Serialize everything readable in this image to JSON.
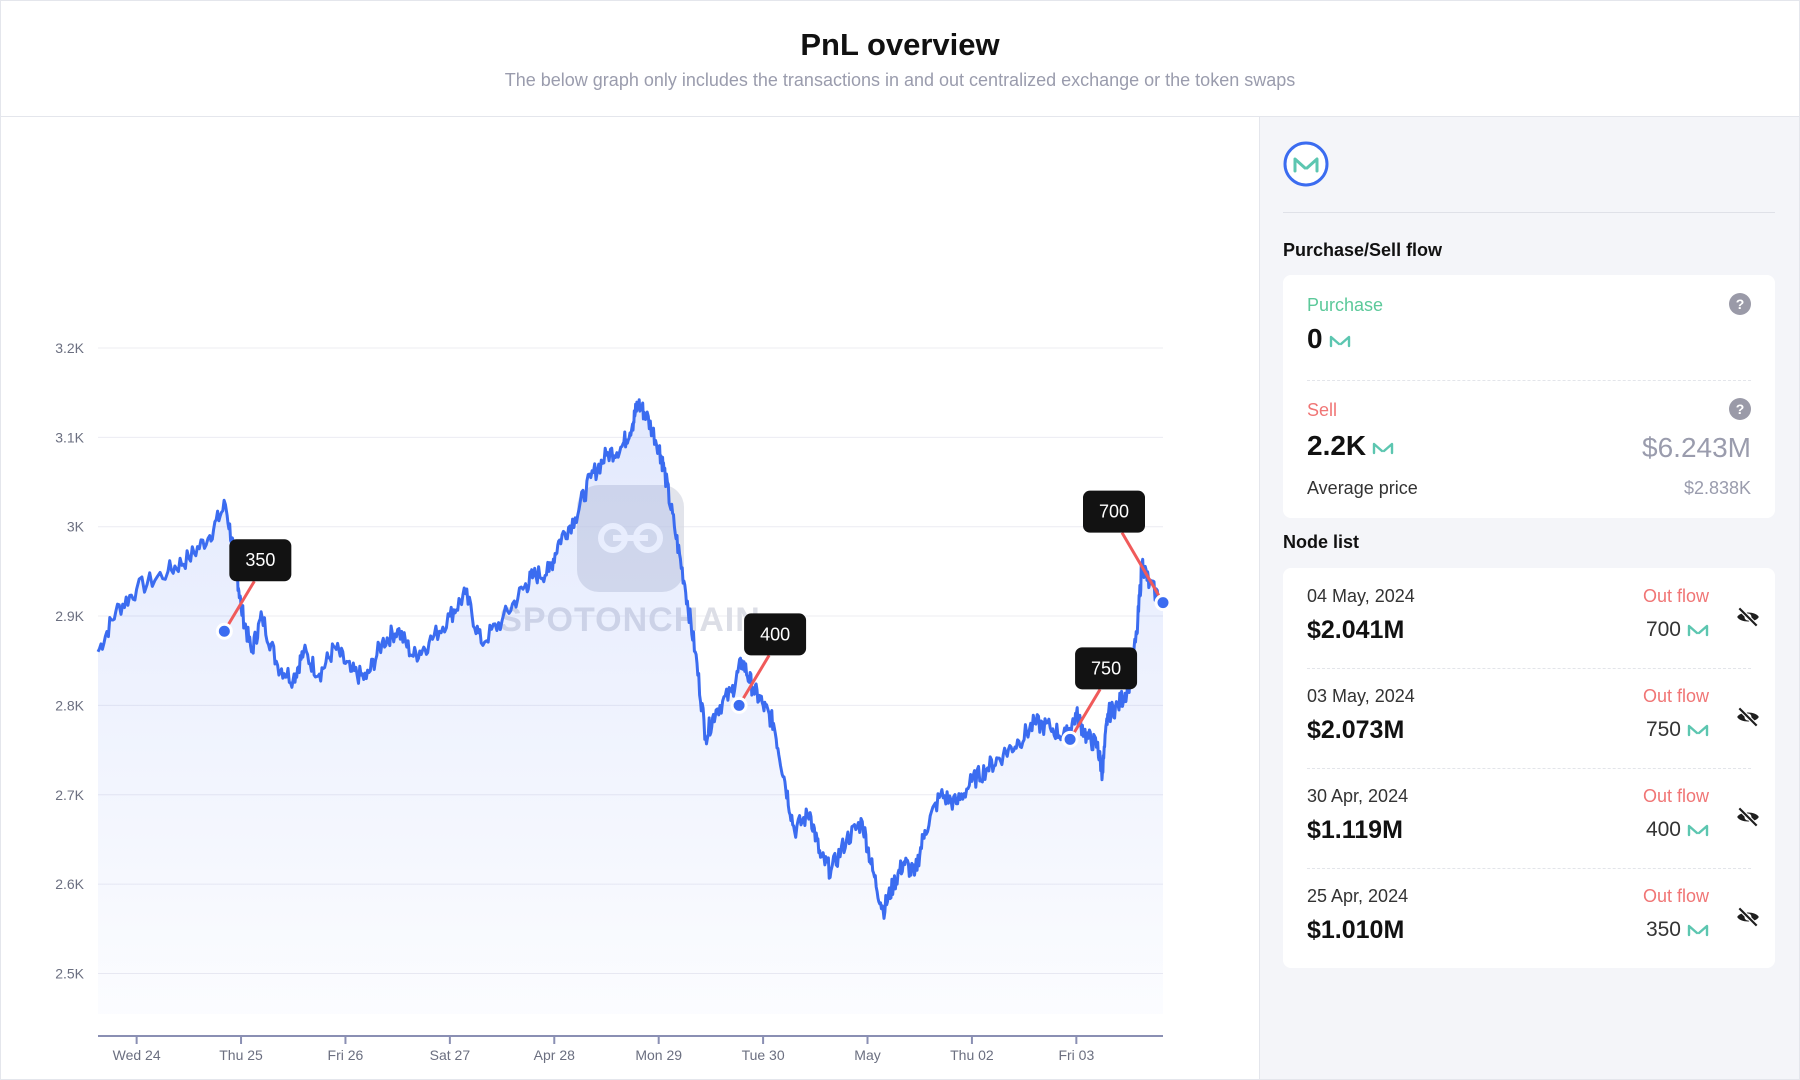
{
  "header": {
    "title": "PnL overview",
    "subtitle": "The below graph only includes the transactions in and out centralized exchange or the token swaps"
  },
  "watermark": {
    "text": "SPOTONCHAIN"
  },
  "chart_data": {
    "type": "area",
    "y_ticks": [
      "3.2K",
      "3.1K",
      "3K",
      "2.9K",
      "2.8K",
      "2.7K",
      "2.6K",
      "2.5K"
    ],
    "y_values": [
      3200,
      3100,
      3000,
      2900,
      2800,
      2700,
      2600,
      2500
    ],
    "ylim": [
      2430,
      3200
    ],
    "x_ticks": [
      "Wed 24",
      "Thu 25",
      "Fri 26",
      "Sat 27",
      "Apr 28",
      "Mon 29",
      "Tue 30",
      "May",
      "Thu 02",
      "Fri 03"
    ],
    "xlim_days": [
      -0.37,
      9.83
    ],
    "grid": true,
    "series": [
      {
        "color": "#3b6cf0",
        "points": [
          [
            -0.37,
            2860
          ],
          [
            -0.2,
            2905
          ],
          [
            0.0,
            2930
          ],
          [
            0.3,
            2950
          ],
          [
            0.5,
            2965
          ],
          [
            0.7,
            2990
          ],
          [
            0.85,
            3025
          ],
          [
            0.95,
            2960
          ],
          [
            1.0,
            2910
          ],
          [
            1.1,
            2860
          ],
          [
            1.2,
            2900
          ],
          [
            1.35,
            2845
          ],
          [
            1.5,
            2830
          ],
          [
            1.6,
            2860
          ],
          [
            1.75,
            2835
          ],
          [
            1.9,
            2865
          ],
          [
            2.05,
            2838
          ],
          [
            2.2,
            2830
          ],
          [
            2.35,
            2870
          ],
          [
            2.5,
            2885
          ],
          [
            2.65,
            2855
          ],
          [
            2.8,
            2870
          ],
          [
            3.0,
            2900
          ],
          [
            3.15,
            2925
          ],
          [
            3.3,
            2870
          ],
          [
            3.5,
            2895
          ],
          [
            3.7,
            2930
          ],
          [
            3.8,
            2945
          ],
          [
            3.95,
            2950
          ],
          [
            4.05,
            2985
          ],
          [
            4.2,
            3010
          ],
          [
            4.35,
            3055
          ],
          [
            4.5,
            3080
          ],
          [
            4.65,
            3090
          ],
          [
            4.75,
            3115
          ],
          [
            4.8,
            3138
          ],
          [
            4.88,
            3125
          ],
          [
            5.0,
            3090
          ],
          [
            5.05,
            3065
          ],
          [
            5.15,
            3000
          ],
          [
            5.25,
            2935
          ],
          [
            5.35,
            2860
          ],
          [
            5.45,
            2765
          ],
          [
            5.55,
            2795
          ],
          [
            5.7,
            2815
          ],
          [
            5.8,
            2850
          ],
          [
            5.9,
            2820
          ],
          [
            6.0,
            2800
          ],
          [
            6.1,
            2780
          ],
          [
            6.2,
            2720
          ],
          [
            6.3,
            2660
          ],
          [
            6.45,
            2680
          ],
          [
            6.55,
            2630
          ],
          [
            6.65,
            2615
          ],
          [
            6.8,
            2650
          ],
          [
            6.95,
            2670
          ],
          [
            7.05,
            2615
          ],
          [
            7.15,
            2570
          ],
          [
            7.25,
            2600
          ],
          [
            7.35,
            2625
          ],
          [
            7.45,
            2610
          ],
          [
            7.55,
            2660
          ],
          [
            7.7,
            2700
          ],
          [
            7.85,
            2690
          ],
          [
            8.0,
            2715
          ],
          [
            8.15,
            2730
          ],
          [
            8.3,
            2745
          ],
          [
            8.45,
            2760
          ],
          [
            8.6,
            2780
          ],
          [
            8.75,
            2775
          ],
          [
            8.9,
            2765
          ],
          [
            9.0,
            2790
          ],
          [
            9.1,
            2765
          ],
          [
            9.2,
            2755
          ],
          [
            9.25,
            2725
          ],
          [
            9.3,
            2790
          ],
          [
            9.4,
            2800
          ],
          [
            9.5,
            2820
          ],
          [
            9.58,
            2880
          ],
          [
            9.63,
            2960
          ],
          [
            9.7,
            2935
          ],
          [
            9.83,
            2915
          ]
        ]
      }
    ],
    "annotations": [
      {
        "label": "350",
        "x": 0.84,
        "y": 2883,
        "anchor": "above-right"
      },
      {
        "label": "400",
        "x": 5.77,
        "y": 2800,
        "anchor": "above-right"
      },
      {
        "label": "750",
        "x": 8.94,
        "y": 2762,
        "anchor": "above-right"
      },
      {
        "label": "700",
        "x": 9.83,
        "y": 2915,
        "anchor": "above-left"
      }
    ]
  },
  "panel": {
    "token_icon": "maker-mkr-logo",
    "flow_title": "Purchase/Sell flow",
    "purchase_label": "Purchase",
    "purchase_value": "0",
    "sell_label": "Sell",
    "sell_value": "2.2K",
    "sell_usd": "$6.243M",
    "avg_label": "Average price",
    "avg_value": "$2.838K",
    "help_glyph": "?",
    "node_title": "Node list",
    "nodes": [
      {
        "date": "04 May, 2024",
        "usd": "$2.041M",
        "flow": "Out flow",
        "amount": "700"
      },
      {
        "date": "03 May, 2024",
        "usd": "$2.073M",
        "flow": "Out flow",
        "amount": "750"
      },
      {
        "date": "30 Apr, 2024",
        "usd": "$1.119M",
        "flow": "Out flow",
        "amount": "400"
      },
      {
        "date": "25 Apr, 2024",
        "usd": "$1.010M",
        "flow": "Out flow",
        "amount": "350"
      }
    ]
  },
  "colors": {
    "line": "#3b6cf0",
    "purchase": "#5cc99a",
    "sell": "#f07575",
    "mkr": "#5cc6b0",
    "annotation_bg": "#121212",
    "annotation_line": "#f05a5a"
  }
}
